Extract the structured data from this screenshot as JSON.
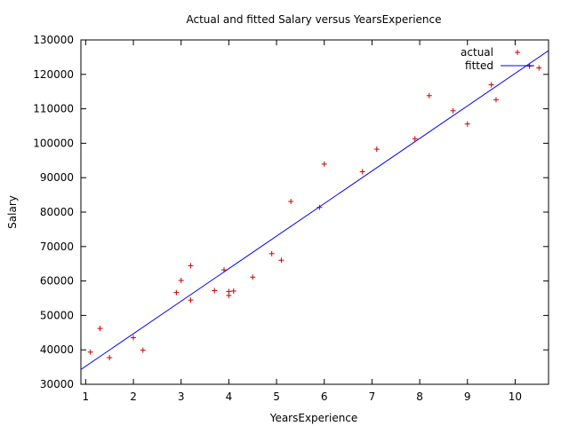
{
  "chart_data": {
    "type": "scatter",
    "title": "Actual and fitted Salary versus YearsExperience",
    "xlabel": "YearsExperience",
    "ylabel": "Salary",
    "xlim": [
      0.9,
      10.7
    ],
    "ylim": [
      30000,
      130000
    ],
    "xticks": [
      1,
      2,
      3,
      4,
      5,
      6,
      7,
      8,
      9,
      10
    ],
    "yticks": [
      30000,
      40000,
      50000,
      60000,
      70000,
      80000,
      90000,
      100000,
      110000,
      120000,
      130000
    ],
    "grid": false,
    "legend": {
      "position": "top-right",
      "entries": [
        "actual",
        "fitted"
      ]
    },
    "series": [
      {
        "name": "actual",
        "kind": "points",
        "marker": "+",
        "color": "#cc0000",
        "x": [
          1.1,
          1.3,
          1.5,
          2.0,
          2.2,
          2.9,
          3.0,
          3.2,
          3.2,
          3.7,
          3.9,
          4.0,
          4.0,
          4.1,
          4.5,
          4.9,
          5.1,
          5.3,
          5.9,
          6.0,
          6.8,
          7.1,
          7.9,
          8.2,
          8.7,
          9.0,
          9.5,
          9.6,
          10.3,
          10.5
        ],
        "y": [
          39343,
          46205,
          37731,
          43525,
          39891,
          56642,
          60150,
          54445,
          64445,
          57189,
          63218,
          55794,
          56957,
          57081,
          61111,
          67938,
          66029,
          83088,
          81363,
          93940,
          91738,
          98273,
          101302,
          113812,
          109431,
          105582,
          116969,
          112635,
          122391,
          121872
        ]
      },
      {
        "name": "fitted",
        "kind": "line",
        "color": "#0000ff",
        "x": [
          0.9,
          10.7
        ],
        "y": [
          34292,
          126908
        ]
      }
    ]
  }
}
